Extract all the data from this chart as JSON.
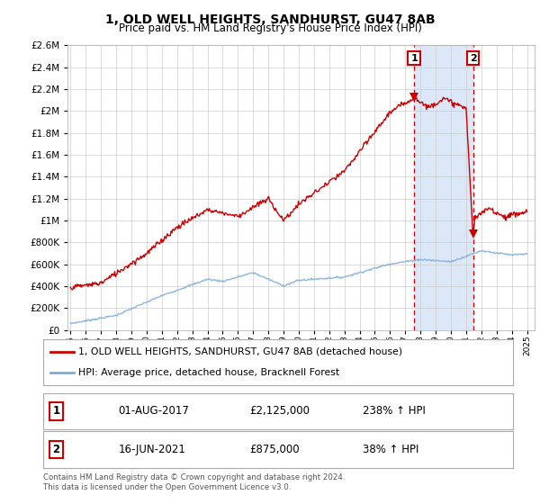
{
  "title": "1, OLD WELL HEIGHTS, SANDHURST, GU47 8AB",
  "subtitle": "Price paid vs. HM Land Registry's House Price Index (HPI)",
  "legend_line1": "1, OLD WELL HEIGHTS, SANDHURST, GU47 8AB (detached house)",
  "legend_line2": "HPI: Average price, detached house, Bracknell Forest",
  "footnote": "Contains HM Land Registry data © Crown copyright and database right 2024.\nThis data is licensed under the Open Government Licence v3.0.",
  "event1_date": "01-AUG-2017",
  "event1_price": "£2,125,000",
  "event1_hpi": "238% ↑ HPI",
  "event1_year": 2017.58,
  "event1_value": 2125000,
  "event2_date": "16-JUN-2021",
  "event2_price": "£875,000",
  "event2_hpi": "38% ↑ HPI",
  "event2_year": 2021.45,
  "event2_value": 875000,
  "red_color": "#cc0000",
  "blue_color": "#7aacdc",
  "span_color": "#dce8f8",
  "plot_bg_color": "#ffffff",
  "grid_color": "#cccccc",
  "dashed_color": "#cc0000",
  "ylim": [
    0,
    2600000
  ],
  "xlim": [
    1994.8,
    2025.5
  ],
  "yticks": [
    0,
    200000,
    400000,
    600000,
    800000,
    1000000,
    1200000,
    1400000,
    1600000,
    1800000,
    2000000,
    2200000,
    2400000,
    2600000
  ]
}
